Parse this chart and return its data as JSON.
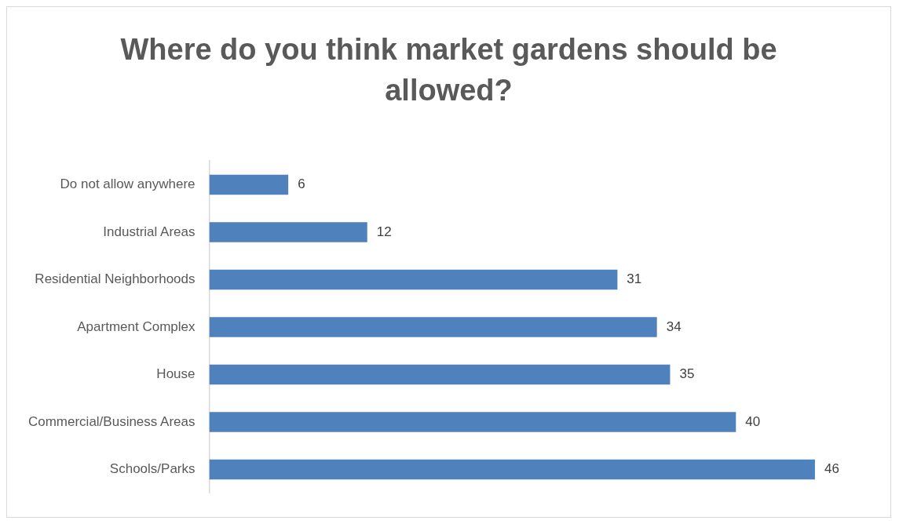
{
  "chart_data": {
    "type": "bar",
    "orientation": "horizontal",
    "title": "Where do you think market gardens should be allowed?",
    "categories": [
      "Do not allow anywhere",
      "Industrial Areas",
      "Residential Neighborhoods",
      "Apartment Complex",
      "House",
      "Commercial/Business Areas",
      "Schools/Parks"
    ],
    "values": [
      6,
      12,
      31,
      34,
      35,
      40,
      46
    ],
    "color": "#4f81bd",
    "data_labels": true,
    "grid": false,
    "legend": false
  }
}
